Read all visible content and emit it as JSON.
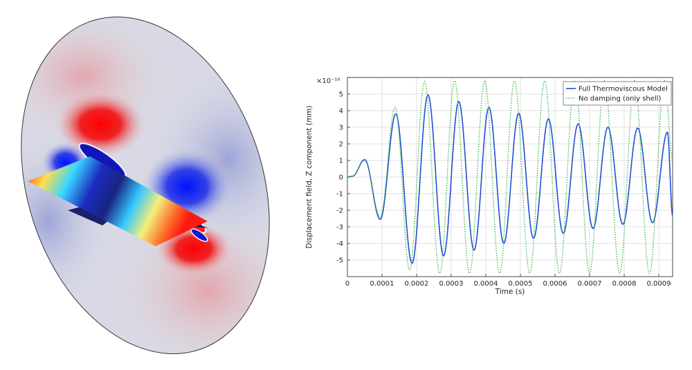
{
  "chart_data": {
    "type": "line",
    "title": "",
    "xlabel": "Time (s)",
    "ylabel": "Displacement field, Z component (mm)",
    "exponent_label": "×10⁻¹⁰",
    "xlim": [
      0,
      0.00094
    ],
    "ylim": [
      -6,
      6
    ],
    "x_ticks": [
      "0",
      "0.0001",
      "0.0002",
      "0.0003",
      "0.0004",
      "0.0005",
      "0.0006",
      "0.0007",
      "0.0008",
      "0.0009"
    ],
    "x_tick_values": [
      0,
      0.0001,
      0.0002,
      0.0003,
      0.0004,
      0.0005,
      0.0006,
      0.0007,
      0.0008,
      0.0009
    ],
    "y_ticks": [
      "-5",
      "-4",
      "-3",
      "-2",
      "-1",
      "0",
      "1",
      "2",
      "3",
      "4",
      "5"
    ],
    "y_tick_values": [
      -5,
      -4,
      -3,
      -2,
      -1,
      0,
      1,
      2,
      3,
      4,
      5
    ],
    "grid": true,
    "legend_position": "top-right",
    "series": [
      {
        "name": "Full Thermoviscous Model",
        "color": "#1f4fd1",
        "style": "solid",
        "x": [
          0,
          1.5e-05,
          5e-05,
          9.5e-05,
          0.00014,
          0.000187,
          0.000233,
          0.000278,
          0.000322,
          0.000366,
          0.000409,
          0.000452,
          0.000495,
          0.000538,
          0.000581,
          0.000624,
          0.000667,
          0.00071,
          0.000753,
          0.000796,
          0.000839,
          0.000882,
          0.000925,
          0.00094
        ],
        "values": [
          0,
          0.05,
          1.05,
          -2.55,
          3.8,
          -5.2,
          4.95,
          -4.75,
          4.55,
          -4.4,
          4.2,
          -4.0,
          3.85,
          -3.7,
          3.5,
          -3.4,
          3.2,
          -3.1,
          3.0,
          -2.85,
          2.95,
          -2.75,
          2.7,
          -2.3
        ]
      },
      {
        "name": "No damping (only shell)",
        "color": "#3cb84a",
        "style": "dotted",
        "x": [
          0,
          1.5e-05,
          5e-05,
          9.5e-05,
          0.000138,
          0.00018,
          0.000223,
          0.000267,
          0.00031,
          0.000353,
          0.000397,
          0.00044,
          0.000483,
          0.000527,
          0.00057,
          0.000613,
          0.000657,
          0.0007,
          0.000743,
          0.000787,
          0.00083,
          0.000873,
          0.000917,
          0.00094
        ],
        "values": [
          0,
          0.05,
          1.0,
          -2.4,
          4.2,
          -5.6,
          5.75,
          -5.8,
          5.8,
          -5.8,
          5.8,
          -5.8,
          5.8,
          -5.8,
          5.8,
          -5.8,
          5.8,
          -5.8,
          5.8,
          -5.8,
          5.8,
          -5.8,
          5.8,
          1.0
        ]
      }
    ]
  }
}
